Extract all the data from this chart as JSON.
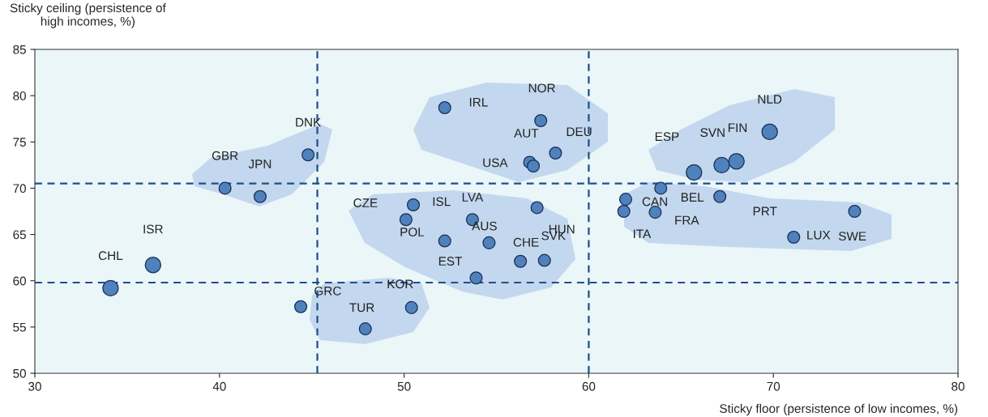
{
  "chart_data": {
    "type": "bubble",
    "xlabel": "Sticky floor (persistence of low incomes, %)",
    "ylabel": "Sticky ceiling (persistence of\nhigh incomes, %)",
    "xlim": [
      30,
      80
    ],
    "xticks": [
      30,
      40,
      50,
      60,
      70,
      80
    ],
    "ylim": [
      50,
      85
    ],
    "yticks": [
      50,
      55,
      60,
      65,
      70,
      75,
      80,
      85
    ],
    "grid": false,
    "marker": "circle",
    "series": [
      {
        "color": "#4f81bd",
        "x": [
          34.1,
          36.4,
          40.3,
          42.2,
          44.8,
          44.4,
          47.9,
          50.4,
          50.1,
          50.5,
          52.2,
          53.7,
          54.6,
          53.9,
          56.3,
          57.6,
          57.2,
          52.2,
          57.4,
          56.8,
          57.0,
          58.2,
          65.7,
          67.2,
          68.0,
          69.8,
          62.0,
          63.9,
          67.1,
          61.9,
          63.6,
          71.1,
          74.4
        ],
        "values": [
          59.2,
          61.7,
          70.0,
          69.1,
          73.6,
          57.2,
          54.8,
          57.1,
          66.6,
          68.2,
          64.3,
          66.6,
          64.1,
          60.3,
          62.1,
          62.2,
          67.9,
          78.7,
          77.3,
          72.8,
          72.4,
          73.8,
          71.7,
          72.5,
          72.9,
          76.1,
          68.8,
          70.0,
          69.1,
          67.5,
          67.4,
          64.7,
          67.5
        ],
        "sizes": [
          1,
          1,
          0.6,
          0.6,
          0.6,
          0.6,
          0.6,
          0.6,
          0.6,
          0.6,
          0.6,
          0.6,
          0.6,
          0.6,
          0.6,
          0.6,
          0.6,
          0.6,
          0.6,
          0.6,
          0.6,
          0.6,
          1,
          1,
          1,
          1,
          0.6,
          0.6,
          0.6,
          0.6,
          0.6,
          0.6,
          0.6
        ]
      }
    ],
    "ref_lines": [
      {
        "axis": "x",
        "value": 45.3,
        "color": "#1f4e8c",
        "line_style": "dashed"
      },
      {
        "axis": "x",
        "value": 60.0,
        "color": "#1f4e8c",
        "line_style": "dashed"
      },
      {
        "axis": "y",
        "value": 70.5,
        "color": "#1f4e8c",
        "line_style": "dashed"
      },
      {
        "axis": "y",
        "value": 59.8,
        "color": "#1f4e8c",
        "line_style": "dashed"
      }
    ],
    "annotations": [
      {
        "text": "CHL",
        "x": 34.1,
        "y": 59.2
      },
      {
        "text": "ISR",
        "x": 36.4,
        "y": 61.7
      },
      {
        "text": "GBR",
        "x": 40.3,
        "y": 70.0
      },
      {
        "text": "JPN",
        "x": 42.2,
        "y": 69.1
      },
      {
        "text": "DNK",
        "x": 44.8,
        "y": 73.6
      },
      {
        "text": "GRC",
        "x": 44.4,
        "y": 57.2
      },
      {
        "text": "TUR",
        "x": 47.9,
        "y": 54.8
      },
      {
        "text": "KOR",
        "x": 50.4,
        "y": 57.1
      },
      {
        "text": "CZE",
        "x": 50.1,
        "y": 66.6
      },
      {
        "text": "ISL",
        "x": 50.5,
        "y": 68.2
      },
      {
        "text": "POL",
        "x": 52.2,
        "y": 64.3
      },
      {
        "text": "LVA",
        "x": 53.7,
        "y": 66.6
      },
      {
        "text": "AUS",
        "x": 54.6,
        "y": 64.1
      },
      {
        "text": "EST",
        "x": 53.9,
        "y": 60.3
      },
      {
        "text": "CHE",
        "x": 56.3,
        "y": 62.1
      },
      {
        "text": "SVK",
        "x": 57.6,
        "y": 62.2
      },
      {
        "text": "HUN",
        "x": 57.2,
        "y": 67.9
      },
      {
        "text": "IRL",
        "x": 52.2,
        "y": 78.7
      },
      {
        "text": "NOR",
        "x": 57.4,
        "y": 77.3
      },
      {
        "text": "AUT",
        "x": 56.8,
        "y": 72.8
      },
      {
        "text": "USA",
        "x": 57.0,
        "y": 72.4
      },
      {
        "text": "DEU",
        "x": 58.2,
        "y": 73.8
      },
      {
        "text": "ESP",
        "x": 65.7,
        "y": 71.7
      },
      {
        "text": "SVN",
        "x": 67.2,
        "y": 72.5
      },
      {
        "text": "FIN",
        "x": 68.0,
        "y": 72.9
      },
      {
        "text": "NLD",
        "x": 69.8,
        "y": 76.1
      },
      {
        "text": "CAN",
        "x": 62.0,
        "y": 68.8
      },
      {
        "text": "BEL",
        "x": 63.9,
        "y": 70.0
      },
      {
        "text": "PRT",
        "x": 67.1,
        "y": 69.1
      },
      {
        "text": "ITA",
        "x": 61.9,
        "y": 67.5
      },
      {
        "text": "FRA",
        "x": 63.6,
        "y": 67.4
      },
      {
        "text": "LUX",
        "x": 71.1,
        "y": 64.7
      },
      {
        "text": "SWE",
        "x": 74.4,
        "y": 67.5
      }
    ]
  }
}
